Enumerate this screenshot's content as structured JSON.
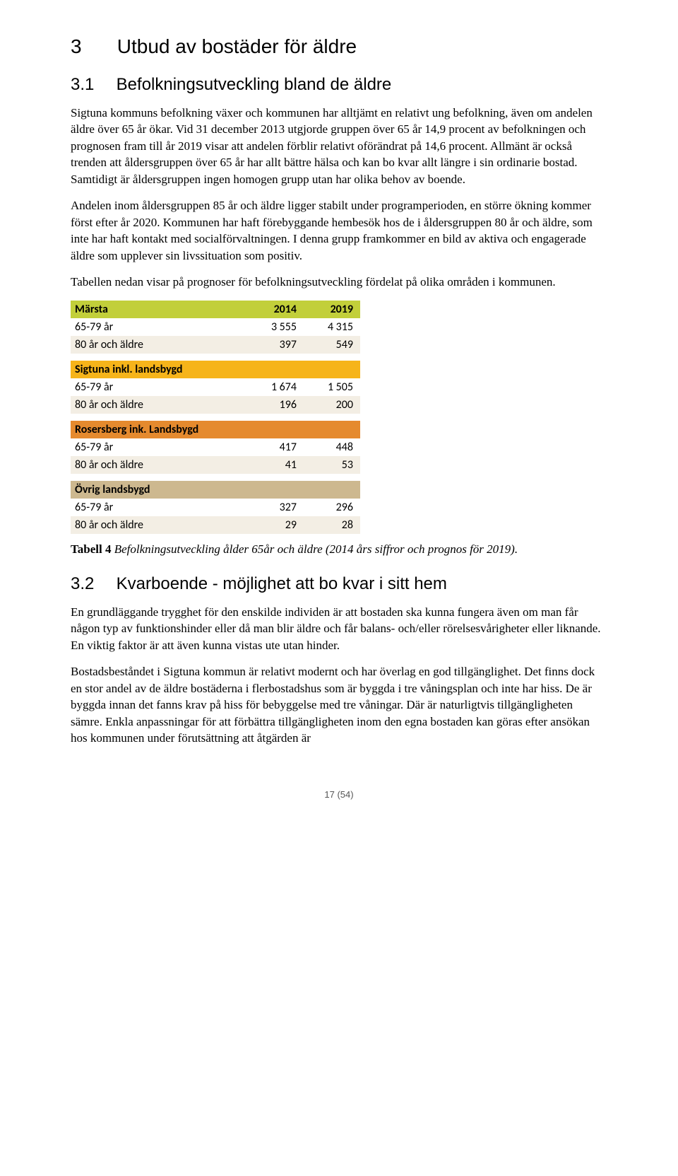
{
  "section": {
    "h1_num": "3",
    "h1_title": "Utbud av bostäder för äldre",
    "h2a_num": "3.1",
    "h2a_title": "Befolkningsutveckling bland de äldre",
    "p1": "Sigtuna kommuns befolkning växer och kommunen har alltjämt en relativt ung befolkning, även om andelen äldre över 65 år ökar. Vid 31 december 2013 utgjorde gruppen över 65 år 14,9 procent av befolkningen och prognosen fram till år 2019 visar att andelen förblir relativt oförändrat på 14,6 procent. Allmänt är också trenden att åldersgruppen över 65 år har allt bättre hälsa och kan bo kvar allt längre i sin ordinarie bostad. Samtidigt är åldersgruppen ingen homogen grupp utan har olika behov av boende.",
    "p2": "Andelen inom åldersgruppen 85 år och äldre ligger stabilt under programperioden, en större ökning kommer först efter år 2020. Kommunen har haft förebyggande hembesök hos de i åldersgruppen 80 år och äldre, som inte har haft kontakt med socialförvaltningen. I denna grupp framkommer en bild av aktiva och engagerade äldre som upplever sin livssituation som positiv.",
    "p3": "Tabellen nedan visar på prognoser för befolkningsutveckling fördelat på olika områden i kommunen.",
    "h2b_num": "3.2",
    "h2b_title": "Kvarboende - möjlighet att bo kvar i sitt hem",
    "p4": "En grundläggande trygghet för den enskilde individen är att bostaden ska kunna fungera även om man får någon typ av funktionshinder eller då man blir äldre och får balans- och/eller rörelsesvårigheter eller liknande. En viktig faktor är att även kunna vistas ute utan hinder.",
    "p5": "Bostadsbeståndet i Sigtuna kommun är relativt modernt och har överlag en god tillgänglighet. Det finns dock en stor andel av de äldre bostäderna i flerbostadshus som är byggda i tre våningsplan och inte har hiss. De är byggda innan det fanns krav på hiss för bebyggelse med tre våningar. Där är naturligtvis tillgängligheten sämre. Enkla anpassningar för att förbättra tillgängligheten inom den egna bostaden kan göras efter ansökan hos kommunen under förutsättning att åtgärden är",
    "caption_bold": "Tabell 4",
    "caption_rest": " Befolkningsutveckling ålder 65år och äldre (2014 års siffror och prognos för 2019)."
  },
  "tables": [
    {
      "title": "Märsta",
      "header_bg": "#c2cf3a",
      "col2": "2014",
      "col3": "2019",
      "rows": [
        {
          "label": "65-79 år",
          "v1": "3 555",
          "v2": "4 315",
          "bg": "#ffffff"
        },
        {
          "label": "80 år och äldre",
          "v1": "397",
          "v2": "549",
          "bg": "#f3eee4"
        }
      ]
    },
    {
      "title": "Sigtuna inkl. landsbygd",
      "header_bg": "#f6b41a",
      "col2": "",
      "col3": "",
      "rows": [
        {
          "label": "65-79 år",
          "v1": "1 674",
          "v2": "1 505",
          "bg": "#ffffff"
        },
        {
          "label": "80 år och äldre",
          "v1": "196",
          "v2": "200",
          "bg": "#f3eee4"
        }
      ]
    },
    {
      "title": "Rosersberg ink. Landsbygd",
      "header_bg": "#e58a2e",
      "col2": "",
      "col3": "",
      "rows": [
        {
          "label": "65-79 år",
          "v1": "417",
          "v2": "448",
          "bg": "#ffffff"
        },
        {
          "label": "80 år och äldre",
          "v1": "41",
          "v2": "53",
          "bg": "#f3eee4"
        }
      ]
    },
    {
      "title": "Övrig landsbygd",
      "header_bg": "#cdb88f",
      "col2": "",
      "col3": "",
      "rows": [
        {
          "label": "65-79 år",
          "v1": "327",
          "v2": "296",
          "bg": "#ffffff"
        },
        {
          "label": "80 år och äldre",
          "v1": "29",
          "v2": "28",
          "bg": "#f3eee4"
        }
      ]
    }
  ],
  "footer": "17 (54)"
}
